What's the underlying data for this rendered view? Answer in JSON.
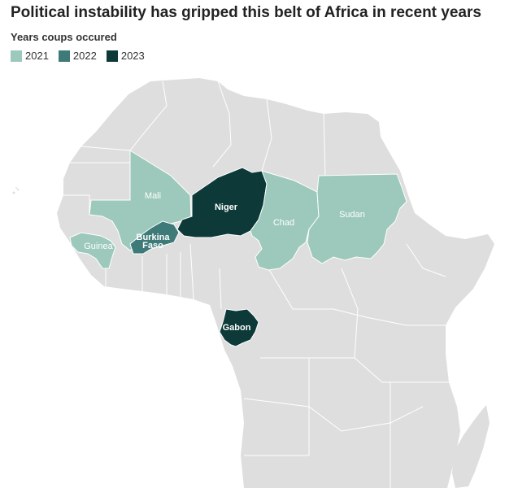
{
  "title": "Political instability has gripped this belt of Africa in recent years",
  "legend": {
    "title": "Years coups occured",
    "items": [
      {
        "label": "2021",
        "color": "#9cc9bb"
      },
      {
        "label": "2022",
        "color": "#3e7a78"
      },
      {
        "label": "2023",
        "color": "#0d3a38"
      }
    ]
  },
  "base_color": "#dedede",
  "border_color": "#ffffff",
  "countries": {
    "mali": {
      "label": "Mali",
      "year": "2021"
    },
    "guinea": {
      "label": "Guinea",
      "year": "2021"
    },
    "chad": {
      "label": "Chad",
      "year": "2021"
    },
    "sudan": {
      "label": "Sudan",
      "year": "2021"
    },
    "burkina": {
      "label_line1": "Burkina",
      "label_line2": "Faso",
      "year": "2022"
    },
    "niger": {
      "label": "Niger",
      "year": "2023"
    },
    "gabon": {
      "label": "Gabon",
      "year": "2023"
    }
  }
}
